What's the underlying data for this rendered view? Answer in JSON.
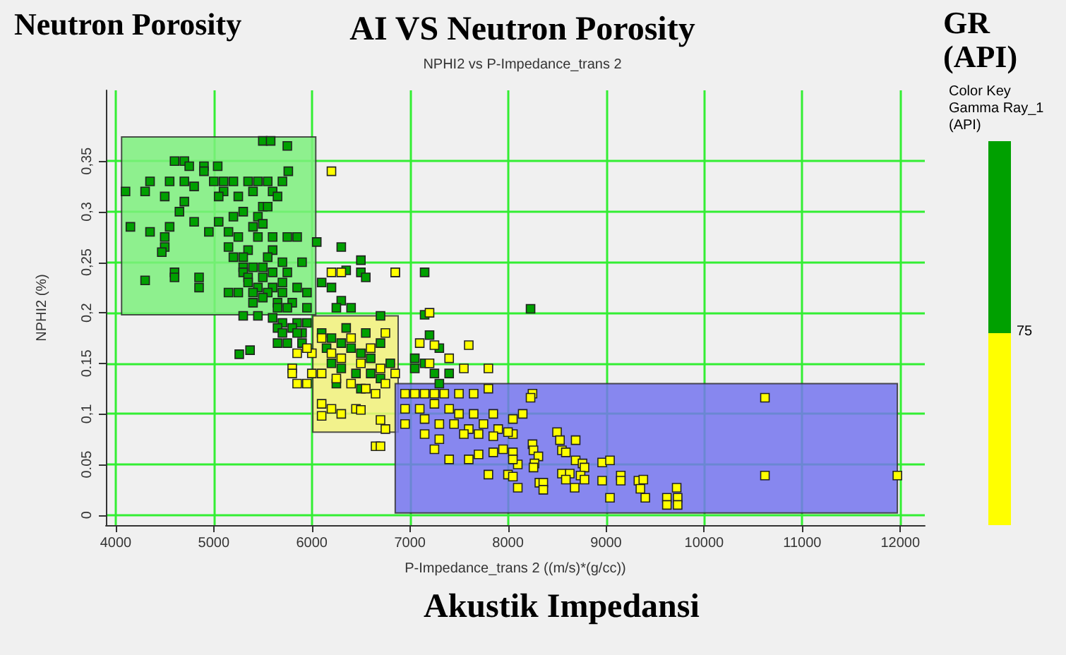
{
  "chart_data": {
    "type": "scatter",
    "title": "AI VS Neutron Porosity",
    "subtitle": "NPHI2 vs P-Impedance_trans 2",
    "xlabel": "P-Impedance_trans 2 ((m/s)*(g/cc))",
    "ylabel": "NPHI2 (%)",
    "clabel": "GR (API)",
    "annotations": [
      "Neutron Porosity",
      "Akustik Impedansi",
      "Color Key",
      "Gamma Ray_1",
      "(API)",
      "75"
    ],
    "xlim": [
      3900,
      12250
    ],
    "xticks": [
      {
        "value": 4000,
        "label": "4000"
      },
      5000,
      6000,
      7000,
      8000,
      9000,
      10000,
      11000,
      12000
    ],
    "ylim": [
      -0.01,
      0.42
    ],
    "yticks": [
      {
        "value": 0,
        "label": "0"
      },
      {
        "value": 0.05,
        "label": "0.05"
      },
      {
        "value": 0.1,
        "label": "0,1"
      },
      {
        "value": 0.15,
        "label": "0.15"
      },
      {
        "value": 0.2,
        "label": "0,2"
      },
      {
        "value": 0.25,
        "label": "0,25"
      },
      {
        "value": 0.3,
        "label": "0,3"
      },
      {
        "value": 0.35,
        "label": "0,35"
      }
    ],
    "grid": true,
    "marker": "square",
    "series": [
      {
        "type": "area",
        "marker": "none",
        "color": "#7cf07c",
        "x": [
          4060,
          6040,
          6040,
          4060
        ],
        "values": [
          0.198,
          0.198,
          0.374,
          0.374
        ]
      },
      {
        "type": "area",
        "marker": "none",
        "color": "#f2f27a",
        "x": [
          6010,
          6880,
          6880,
          6010
        ],
        "values": [
          0.082,
          0.082,
          0.197,
          0.197
        ]
      },
      {
        "type": "area",
        "marker": "none",
        "color": "#7474ee",
        "x": [
          6850,
          11970,
          11970,
          6850
        ],
        "values": [
          0.002,
          0.002,
          0.13,
          0.13
        ]
      },
      {
        "color": "#00a000",
        "x": [
          5500,
          5580,
          5750,
          5760,
          4600,
          4700,
          4750,
          4900,
          5040,
          4900,
          4350,
          4550,
          4700,
          4800,
          5000,
          5100,
          5200,
          5350,
          5450,
          5550,
          5700,
          4100,
          4300,
          5100,
          5400,
          5600,
          4500,
          4700,
          5050,
          5250,
          5650,
          5500,
          5550,
          4650,
          5300,
          5450,
          5200,
          5050,
          4800,
          4150,
          4550,
          5400,
          5500,
          4500,
          4350,
          4950,
          5150,
          5250,
          5450,
          5600,
          5750,
          5850,
          4500,
          4470,
          5150,
          5350,
          5600,
          5200,
          5300,
          5550,
          5700,
          5900,
          5300,
          5400,
          5500,
          5600,
          5750,
          4600,
          4600,
          4850,
          5300,
          5350,
          5500,
          5700,
          4300,
          4850,
          5350,
          5450,
          5600,
          5850,
          5150,
          5250,
          5400,
          5550,
          5700,
          5950,
          5400,
          5500,
          5650,
          5800,
          5950,
          5650,
          5750,
          6050,
          6300,
          6500,
          6350,
          6500,
          6850,
          7150,
          6550,
          6100,
          6200,
          6300,
          6400,
          6250,
          7150,
          6700,
          8230,
          5300,
          5450,
          5600,
          5700,
          5850,
          5950,
          5650,
          5800,
          5900,
          5700,
          5850,
          5750,
          5900,
          5650,
          5370,
          5260,
          6100,
          6200,
          6300,
          6400,
          6500,
          6600,
          6200,
          6300,
          6450,
          6600,
          6700,
          6150,
          6350,
          6550,
          6700,
          6250,
          6500,
          6800,
          7050,
          7050,
          7250,
          7300,
          7200,
          7400,
          7150,
          7300
        ],
        "values": [
          0.37,
          0.37,
          0.365,
          0.34,
          0.35,
          0.35,
          0.345,
          0.345,
          0.345,
          0.34,
          0.33,
          0.33,
          0.33,
          0.325,
          0.33,
          0.33,
          0.33,
          0.33,
          0.33,
          0.33,
          0.33,
          0.32,
          0.32,
          0.32,
          0.32,
          0.32,
          0.315,
          0.31,
          0.315,
          0.315,
          0.315,
          0.305,
          0.305,
          0.3,
          0.3,
          0.295,
          0.295,
          0.29,
          0.29,
          0.285,
          0.285,
          0.285,
          0.288,
          0.275,
          0.28,
          0.28,
          0.28,
          0.275,
          0.275,
          0.275,
          0.275,
          0.275,
          0.265,
          0.26,
          0.265,
          0.262,
          0.262,
          0.255,
          0.255,
          0.255,
          0.25,
          0.25,
          0.245,
          0.245,
          0.245,
          0.24,
          0.24,
          0.24,
          0.235,
          0.235,
          0.24,
          0.235,
          0.235,
          0.23,
          0.232,
          0.225,
          0.23,
          0.225,
          0.225,
          0.225,
          0.22,
          0.22,
          0.22,
          0.22,
          0.22,
          0.22,
          0.21,
          0.215,
          0.21,
          0.21,
          0.205,
          0.205,
          0.205,
          0.27,
          0.265,
          0.252,
          0.242,
          0.24,
          0.24,
          0.24,
          0.235,
          0.23,
          0.225,
          0.212,
          0.205,
          0.205,
          0.198,
          0.197,
          0.204,
          0.197,
          0.197,
          0.195,
          0.19,
          0.19,
          0.19,
          0.185,
          0.185,
          0.18,
          0.18,
          0.18,
          0.17,
          0.17,
          0.17,
          0.163,
          0.159,
          0.18,
          0.175,
          0.17,
          0.165,
          0.16,
          0.155,
          0.15,
          0.145,
          0.14,
          0.14,
          0.135,
          0.165,
          0.185,
          0.18,
          0.17,
          0.13,
          0.125,
          0.15,
          0.155,
          0.145,
          0.14,
          0.165,
          0.178,
          0.14,
          0.15,
          0.13
        ]
      },
      {
        "color": "#ffff00",
        "x": [
          6200,
          6200,
          6300,
          6850,
          7200,
          6000,
          5800,
          5800,
          5850,
          5950,
          6000,
          5850,
          5950,
          7100,
          7250,
          7600,
          7400,
          7200,
          7550,
          7800,
          6850,
          6100,
          6200,
          6300,
          6400,
          6500,
          6600,
          6700,
          6750,
          6100,
          6250,
          6400,
          6550,
          6650,
          6750,
          6100,
          6200,
          6300,
          6100,
          6450,
          6500,
          6700,
          6750,
          6650,
          6700,
          6950,
          7050,
          7150,
          7250,
          7350,
          7500,
          7650,
          7800,
          8250,
          6950,
          7100,
          7250,
          7400,
          7500,
          7650,
          7850,
          8050,
          8150,
          6950,
          7150,
          7300,
          7450,
          7600,
          7750,
          7900,
          8050,
          7150,
          7300,
          7550,
          7700,
          7850,
          8000,
          7250,
          7400,
          7600,
          7700,
          7850,
          7950,
          8050,
          8100,
          7800,
          8000,
          8050,
          8100,
          8250,
          8050,
          8230,
          10620,
          10620,
          11970,
          8500,
          8530,
          8690,
          8260,
          8550,
          8590,
          8310,
          8690,
          8760,
          8780,
          8960,
          9040,
          8270,
          8260,
          8550,
          8630,
          8740,
          9150,
          8590,
          8780,
          8960,
          9150,
          9330,
          9380,
          8320,
          8360,
          8360,
          8680,
          9350,
          9720,
          9040,
          9400,
          9620,
          9730,
          9620,
          9730
        ],
        "values": [
          0.34,
          0.24,
          0.24,
          0.24,
          0.2,
          0.16,
          0.145,
          0.14,
          0.13,
          0.13,
          0.14,
          0.16,
          0.165,
          0.17,
          0.168,
          0.168,
          0.155,
          0.15,
          0.145,
          0.145,
          0.14,
          0.175,
          0.16,
          0.155,
          0.175,
          0.15,
          0.165,
          0.145,
          0.18,
          0.14,
          0.135,
          0.13,
          0.125,
          0.12,
          0.13,
          0.11,
          0.105,
          0.1,
          0.098,
          0.105,
          0.104,
          0.094,
          0.085,
          0.068,
          0.068,
          0.12,
          0.12,
          0.12,
          0.12,
          0.12,
          0.12,
          0.12,
          0.125,
          0.12,
          0.105,
          0.105,
          0.11,
          0.105,
          0.1,
          0.1,
          0.1,
          0.095,
          0.1,
          0.09,
          0.095,
          0.09,
          0.09,
          0.085,
          0.09,
          0.085,
          0.08,
          0.08,
          0.075,
          0.08,
          0.08,
          0.078,
          0.082,
          0.065,
          0.055,
          0.055,
          0.06,
          0.062,
          0.065,
          0.062,
          0.05,
          0.04,
          0.04,
          0.038,
          0.027,
          0.07,
          0.055,
          0.116,
          0.116,
          0.039,
          0.039,
          0.082,
          0.074,
          0.074,
          0.064,
          0.064,
          0.062,
          0.058,
          0.054,
          0.051,
          0.047,
          0.052,
          0.054,
          0.051,
          0.047,
          0.041,
          0.041,
          0.039,
          0.039,
          0.035,
          0.035,
          0.034,
          0.034,
          0.034,
          0.035,
          0.032,
          0.032,
          0.025,
          0.027,
          0.026,
          0.027,
          0.017,
          0.017,
          0.017,
          0.017,
          0.01,
          0.01
        ]
      }
    ]
  }
}
